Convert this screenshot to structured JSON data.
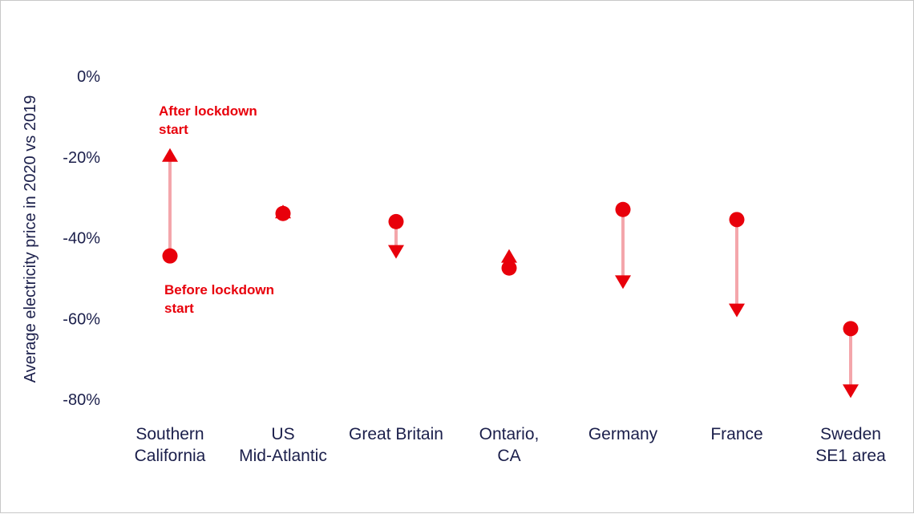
{
  "chart_data": {
    "type": "scatter",
    "xlabel": "",
    "ylabel": "Average electricity price in 2020 vs 2019",
    "yticks": [
      "0%",
      "-20%",
      "-40%",
      "-60%",
      "-80%"
    ],
    "ytick_values": [
      0,
      -20,
      -40,
      -60,
      -80
    ],
    "ylim": [
      -80,
      0
    ],
    "grid": false,
    "legend": "none",
    "categories": [
      [
        "Southern",
        "California"
      ],
      [
        "US",
        "Mid-Atlantic"
      ],
      [
        "Great Britain"
      ],
      [
        "Ontario,",
        "CA"
      ],
      [
        "Germany"
      ],
      [
        "France"
      ],
      [
        "Sweden",
        "SE1 area"
      ]
    ],
    "series": [
      {
        "values": [
          -44.5,
          -34.0,
          -36.0,
          -47.5,
          -33.0,
          -35.5,
          -62.5
        ]
      },
      {
        "values": [
          -19.5,
          -33.5,
          -43.5,
          -44.5,
          -51.0,
          -58.0,
          -78.0
        ]
      }
    ],
    "annotations": [
      {
        "lines": [
          "After lockdown",
          "start"
        ]
      },
      {
        "lines": [
          "Before lockdown",
          "start"
        ]
      }
    ],
    "colors": {
      "marker": "#e8000b",
      "connector": "#f4a6ab",
      "text": "#1b1f4b"
    }
  }
}
